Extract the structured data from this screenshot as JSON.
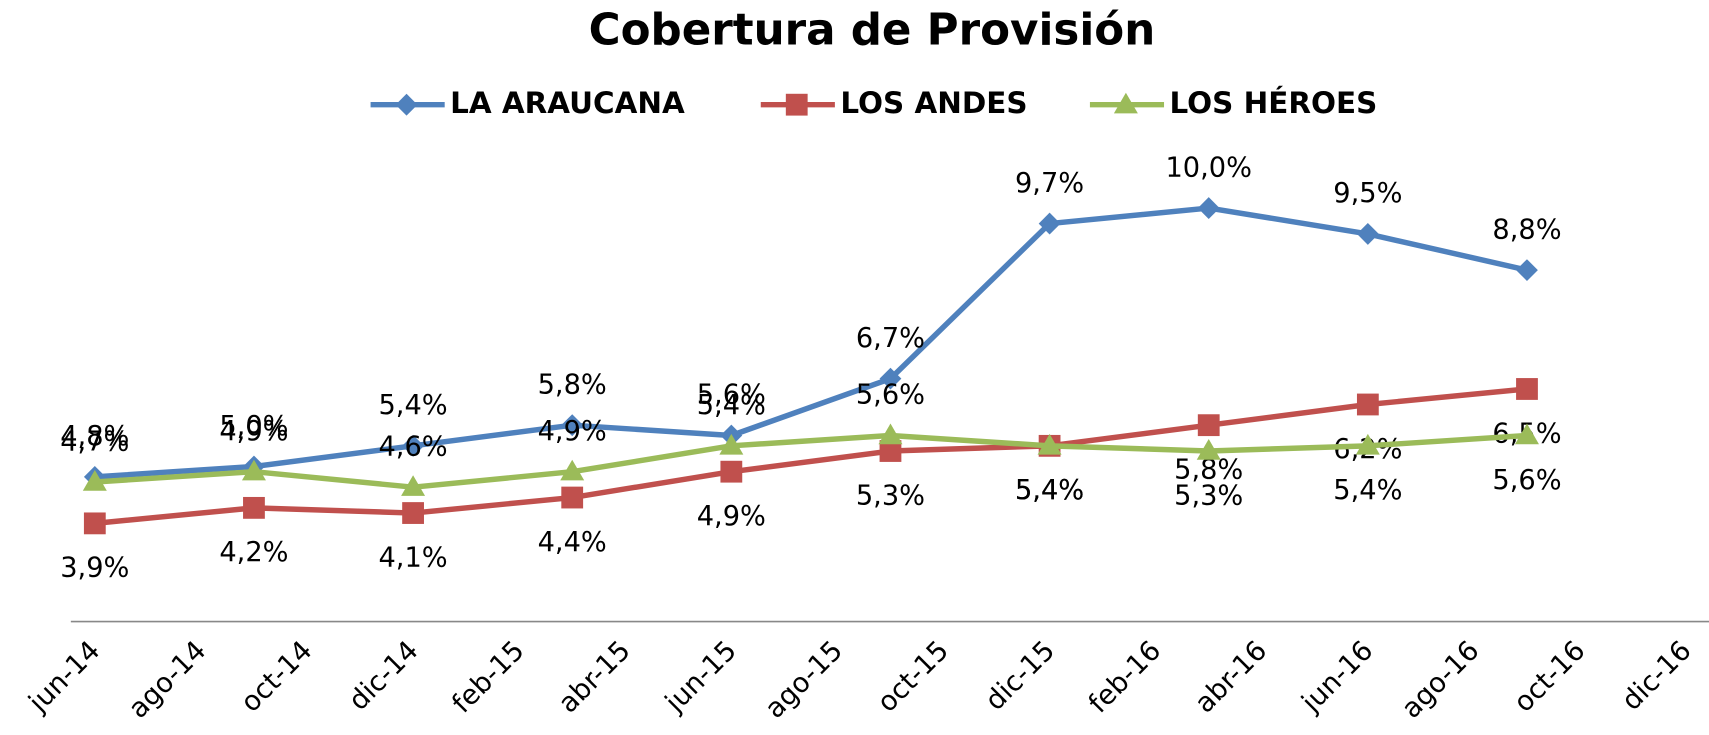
{
  "chart_data": {
    "type": "line",
    "title": "Cobertura de Provisión",
    "categories": [
      "jun-14",
      null,
      "ago-14",
      null,
      "oct-14",
      null,
      "dic-14",
      null,
      "feb-15",
      null,
      "abr-15",
      null,
      "jun-15",
      null,
      "ago-15",
      null,
      "oct-15",
      null,
      "dic-15",
      null,
      "feb-16",
      null,
      "abr-16",
      null,
      "jun-16",
      null,
      "ago-16",
      null,
      "oct-16",
      null,
      "dic-16"
    ],
    "connect_gaps": true,
    "legend": "top",
    "ylim": [
      2,
      12
    ],
    "series": [
      {
        "name": "LA ARAUCANA",
        "color": "#4f81bd",
        "marker": "diamond",
        "values": [
          4.8,
          null,
          null,
          5.0,
          null,
          null,
          5.4,
          null,
          null,
          5.8,
          null,
          null,
          5.6,
          null,
          null,
          6.7,
          null,
          null,
          9.7,
          null,
          null,
          10.0,
          null,
          null,
          9.5,
          null,
          null,
          8.8,
          null,
          null,
          null
        ],
        "value_labels": [
          "4,8%",
          null,
          null,
          "5,0%",
          null,
          null,
          "5,4%",
          null,
          null,
          "5,8%",
          null,
          null,
          "5,6%",
          null,
          null,
          "6,7%",
          null,
          null,
          "9,7%",
          null,
          null,
          "10,0%",
          null,
          null,
          "9,5%",
          null,
          null,
          "8,8%",
          null,
          null,
          null
        ]
      },
      {
        "name": "LOS ANDES",
        "color": "#c0504d",
        "marker": "square",
        "values": [
          3.9,
          null,
          null,
          4.2,
          null,
          null,
          4.1,
          null,
          null,
          4.4,
          null,
          null,
          4.9,
          null,
          null,
          5.3,
          null,
          null,
          5.4,
          null,
          null,
          5.8,
          null,
          null,
          6.2,
          null,
          null,
          6.5,
          null,
          null,
          null
        ],
        "value_labels": [
          "3,9%",
          null,
          null,
          "4,2%",
          null,
          null,
          "4,1%",
          null,
          null,
          "4,4%",
          null,
          null,
          "4,9%",
          null,
          null,
          "5,3%",
          null,
          null,
          "5,4%",
          null,
          null,
          "5,8%",
          null,
          null,
          "6,2%",
          null,
          null,
          "6,5%",
          null,
          null,
          null
        ]
      },
      {
        "name": "LOS HÉROES",
        "color": "#9bbb59",
        "marker": "triangle",
        "values": [
          4.7,
          null,
          null,
          4.9,
          null,
          null,
          4.6,
          null,
          null,
          4.9,
          null,
          null,
          5.4,
          null,
          null,
          5.6,
          null,
          null,
          5.4,
          null,
          null,
          5.3,
          null,
          null,
          5.4,
          null,
          null,
          5.6,
          null,
          null,
          null
        ],
        "value_labels": [
          "4,7%",
          null,
          null,
          "4,9%",
          null,
          null,
          "4,6%",
          null,
          null,
          "4,9%",
          null,
          null,
          "5,4%",
          null,
          null,
          "5,6%",
          null,
          null,
          "5,4%",
          null,
          null,
          "5,3%",
          null,
          null,
          "5,4%",
          null,
          null,
          "5,6%",
          null,
          null,
          null
        ]
      }
    ]
  }
}
